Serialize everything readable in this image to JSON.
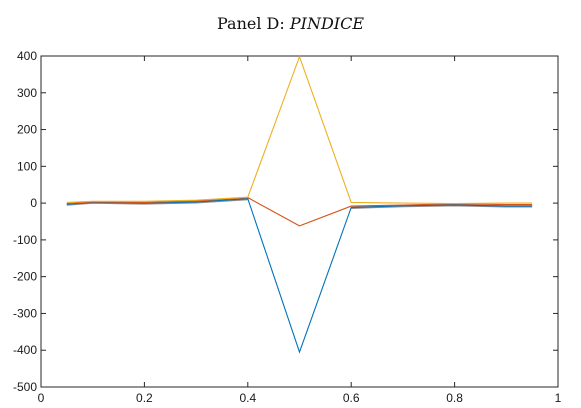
{
  "chart_data": {
    "type": "line",
    "title_prefix": "Panel D: ",
    "title_emphasis": "PINDICE",
    "xlabel": "",
    "ylabel": "",
    "xlim": [
      0,
      1
    ],
    "ylim": [
      -500,
      400
    ],
    "xticks": [
      0,
      0.2,
      0.4,
      0.6,
      0.8,
      1
    ],
    "xtick_labels": [
      "0",
      "0.2",
      "0.4",
      "0.6",
      "0.8",
      "1"
    ],
    "yticks": [
      400,
      300,
      200,
      100,
      0,
      -100,
      -200,
      -300,
      -400,
      -500
    ],
    "ytick_labels": [
      "400",
      "300",
      "200",
      "100",
      "0",
      "-100",
      "-200",
      "-300",
      "-400",
      "-500"
    ],
    "grid": false,
    "x": [
      0.05,
      0.1,
      0.2,
      0.3,
      0.4,
      0.5,
      0.6,
      0.7,
      0.8,
      0.9,
      0.95
    ],
    "series": [
      {
        "color": "#0072BD",
        "values": [
          -3,
          2,
          0,
          3,
          12,
          -405,
          -12,
          -7,
          -5,
          -8,
          -8
        ]
      },
      {
        "color": "#D95319",
        "values": [
          -1,
          3,
          2,
          6,
          15,
          -62,
          -8,
          -5,
          -2,
          -4,
          -4
        ]
      },
      {
        "color": "#EDB120",
        "values": [
          2,
          5,
          5,
          8,
          16,
          398,
          2,
          0,
          -1,
          0,
          0
        ]
      },
      {
        "color": "#8C8C8C",
        "values": [
          -4,
          1,
          -1,
          2,
          11,
          null,
          -13,
          -8,
          -6,
          -9,
          -9
        ]
      }
    ]
  }
}
